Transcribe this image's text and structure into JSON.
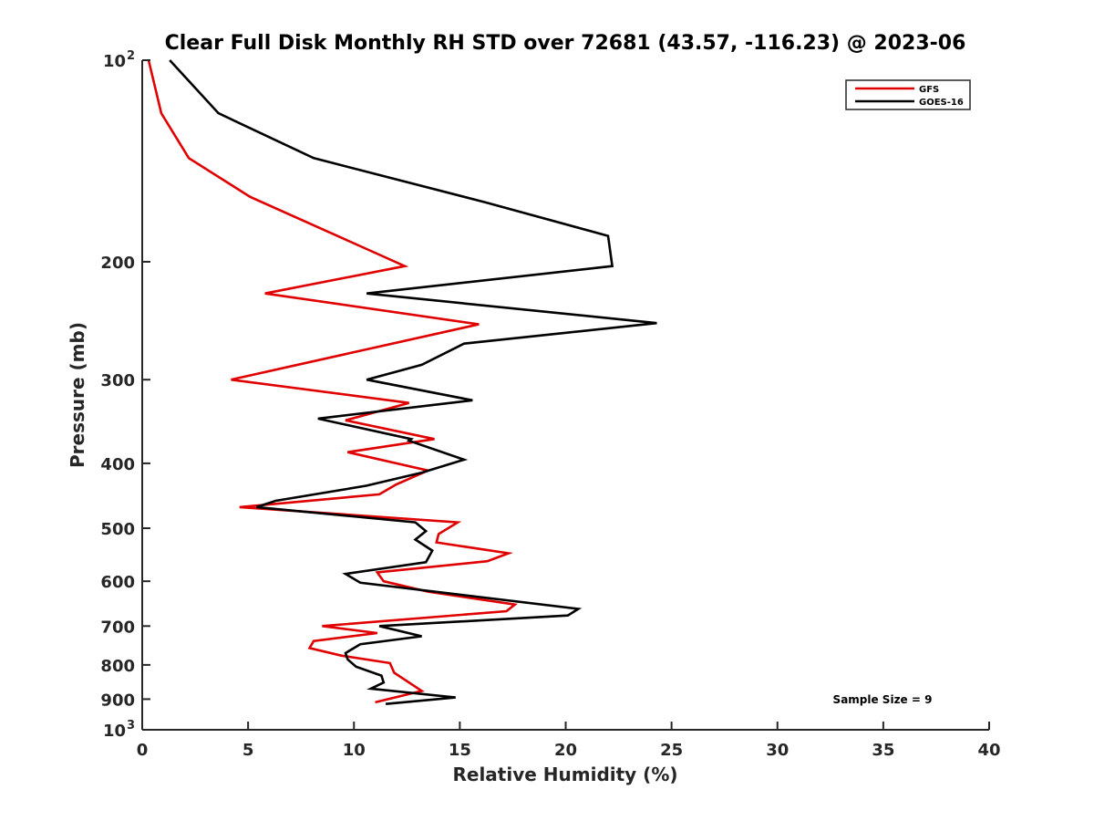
{
  "chart_data": {
    "type": "line",
    "title": "Clear Full Disk Monthly RH STD over 72681 (43.57, -116.23) @ 2023-06",
    "xlabel": "Relative Humidity (%)",
    "ylabel": "Pressure (mb)",
    "xlim": [
      0,
      40
    ],
    "ylim": [
      100,
      1000
    ],
    "yscale": "log",
    "y_reversed": true,
    "grid": false,
    "xticks": [
      0,
      5,
      10,
      15,
      20,
      25,
      30,
      35,
      40
    ],
    "xtick_labels": [
      "0",
      "5",
      "10",
      "15",
      "20",
      "25",
      "30",
      "35",
      "40"
    ],
    "yticks": [
      100,
      200,
      300,
      400,
      500,
      600,
      700,
      800,
      900,
      1000
    ],
    "ytick_labels": [
      {
        "base": "10",
        "exp": "2"
      },
      {
        "base": "200",
        "exp": ""
      },
      {
        "base": "300",
        "exp": ""
      },
      {
        "base": "400",
        "exp": ""
      },
      {
        "base": "500",
        "exp": ""
      },
      {
        "base": "600",
        "exp": ""
      },
      {
        "base": "700",
        "exp": ""
      },
      {
        "base": "800",
        "exp": ""
      },
      {
        "base": "900",
        "exp": ""
      },
      {
        "base": "10",
        "exp": "3"
      }
    ],
    "legend": {
      "position": "top-right",
      "entries": [
        "GFS",
        "GOES-16"
      ]
    },
    "annotations": [
      {
        "text": "Sample Size = 9",
        "position": "bottom-right"
      }
    ],
    "series": [
      {
        "name": "GFS",
        "color": "#e00000",
        "x": [
          0.3,
          0.9,
          2.2,
          5.1,
          12.4,
          5.8,
          15.9,
          4.2,
          12.6,
          9.6,
          13.8,
          9.7,
          13.5,
          12.0,
          11.2,
          4.6,
          14.9,
          14.0,
          13.9,
          17.3,
          16.3,
          11.1,
          11.4,
          13.5,
          17.6,
          17.2,
          8.5,
          11.1,
          8.1,
          7.9,
          9.4,
          11.7,
          11.9,
          13.2,
          11.0
        ],
        "y": [
          100,
          120,
          140,
          160,
          203,
          223,
          248,
          300,
          325,
          345,
          368,
          385,
          410,
          430,
          445,
          465,
          490,
          510,
          525,
          545,
          560,
          582,
          600,
          622,
          650,
          665,
          700,
          717,
          737,
          755,
          775,
          795,
          822,
          875,
          910
        ]
      },
      {
        "name": "GOES-16",
        "color": "#000000",
        "x": [
          1.3,
          3.6,
          8.1,
          16.2,
          22.0,
          22.2,
          10.6,
          24.3,
          15.2,
          13.2,
          10.6,
          15.6,
          8.3,
          12.7,
          12.6,
          15.2,
          13.2,
          10.6,
          6.3,
          5.4,
          12.9,
          13.4,
          12.9,
          13.7,
          13.4,
          9.6,
          10.3,
          20.6,
          20.1,
          11.2,
          13.2,
          10.3,
          9.6,
          9.7,
          10.1,
          11.3,
          11.4,
          10.8,
          14.8,
          11.5
        ],
        "y": [
          100,
          120,
          140,
          163,
          183,
          203,
          223,
          247,
          265,
          285,
          300,
          322,
          343,
          368,
          370,
          395,
          413,
          432,
          455,
          465,
          490,
          505,
          520,
          540,
          562,
          585,
          603,
          660,
          675,
          700,
          725,
          745,
          768,
          785,
          805,
          830,
          850,
          868,
          895,
          915
        ]
      }
    ]
  }
}
